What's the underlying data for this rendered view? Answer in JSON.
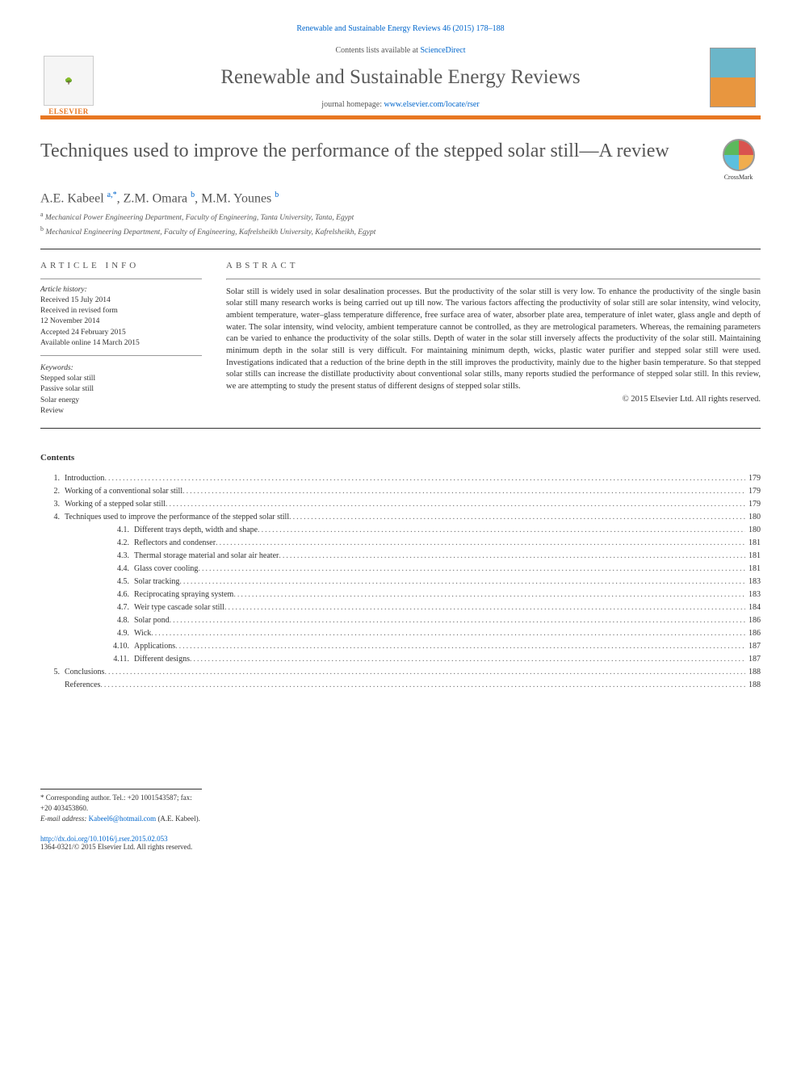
{
  "header": {
    "citation": "Renewable and Sustainable Energy Reviews 46 (2015) 178–188",
    "contents_prefix": "Contents lists available at ",
    "contents_link": "ScienceDirect",
    "journal_name": "Renewable and Sustainable Energy Reviews",
    "homepage_prefix": "journal homepage: ",
    "homepage_link": "www.elsevier.com/locate/rser",
    "publisher": "ELSEVIER"
  },
  "article": {
    "title": "Techniques used to improve the performance of the stepped solar still—A review",
    "crossmark": "CrossMark"
  },
  "authors": {
    "list": "A.E. Kabeel",
    "a1_sup": "a,",
    "a1_star": "*",
    "sep1": ", Z.M. Omara",
    "a2_sup": "b",
    "sep2": ", M.M. Younes",
    "a3_sup": "b"
  },
  "affiliations": [
    {
      "sup": "a",
      "text": " Mechanical Power Engineering Department, Faculty of Engineering, Tanta University, Tanta, Egypt"
    },
    {
      "sup": "b",
      "text": " Mechanical Engineering Department, Faculty of Engineering, Kafrelsheikh University, Kafrelsheikh, Egypt"
    }
  ],
  "article_info": {
    "label": "article info",
    "history_label": "Article history:",
    "history": [
      "Received 15 July 2014",
      "Received in revised form",
      "12 November 2014",
      "Accepted 24 February 2015",
      "Available online 14 March 2015"
    ],
    "keywords_label": "Keywords:",
    "keywords": [
      "Stepped solar still",
      "Passive solar still",
      "Solar energy",
      "Review"
    ]
  },
  "abstract": {
    "label": "abstract",
    "text": "Solar still is widely used in solar desalination processes. But the productivity of the solar still is very low. To enhance the productivity of the single basin solar still many research works is being carried out up till now. The various factors affecting the productivity of solar still are solar intensity, wind velocity, ambient temperature, water–glass temperature difference, free surface area of water, absorber plate area, temperature of inlet water, glass angle and depth of water. The solar intensity, wind velocity, ambient temperature cannot be controlled, as they are metrological parameters. Whereas, the remaining parameters can be varied to enhance the productivity of the solar stills. Depth of water in the solar still inversely affects the productivity of the solar still. Maintaining minimum depth in the solar still is very difficult. For maintaining minimum depth, wicks, plastic water purifier and stepped solar still were used. Investigations indicated that a reduction of the brine depth in the still improves the productivity, mainly due to the higher basin temperature. So that stepped solar stills can increase the distillate productivity about conventional solar stills, many reports studied the performance of stepped solar still. In this review, we are attempting to study the present status of different designs of stepped solar stills.",
    "copyright": "© 2015 Elsevier Ltd. All rights reserved."
  },
  "contents": {
    "heading": "Contents",
    "items": [
      {
        "num": "1.",
        "title": "Introduction",
        "page": "179"
      },
      {
        "num": "2.",
        "title": "Working of a conventional solar still ",
        "page": "179"
      },
      {
        "num": "3.",
        "title": "Working of a stepped solar still ",
        "page": "179"
      },
      {
        "num": "4.",
        "title": "Techniques used to improve the performance of the stepped solar still ",
        "page": "180"
      },
      {
        "sub": "4.1.",
        "title": "Different trays depth, width and shape ",
        "page": "180"
      },
      {
        "sub": "4.2.",
        "title": "Reflectors and condenser ",
        "page": "181"
      },
      {
        "sub": "4.3.",
        "title": "Thermal storage material and solar air heater",
        "page": "181"
      },
      {
        "sub": "4.4.",
        "title": "Glass cover cooling ",
        "page": "181"
      },
      {
        "sub": "4.5.",
        "title": "Solar tracking",
        "page": "183"
      },
      {
        "sub": "4.6.",
        "title": "Reciprocating spraying system ",
        "page": "183"
      },
      {
        "sub": "4.7.",
        "title": "Weir type cascade solar still",
        "page": "184"
      },
      {
        "sub": "4.8.",
        "title": "Solar pond ",
        "page": "186"
      },
      {
        "sub": "4.9.",
        "title": "Wick",
        "page": "186"
      },
      {
        "sub": "4.10.",
        "title": "Applications ",
        "page": "187"
      },
      {
        "sub": "4.11.",
        "title": "Different designs ",
        "page": "187"
      },
      {
        "num": "5.",
        "title": "Conclusions ",
        "page": "188"
      },
      {
        "num": "",
        "title": "References ",
        "page": "188"
      }
    ]
  },
  "footnotes": {
    "corr_prefix": "* Corresponding author. Tel.: +20 1001543587; fax: +20 403453860.",
    "email_label": "E-mail address: ",
    "email": "Kabeel6@hotmail.com",
    "email_suffix": " (A.E. Kabeel)."
  },
  "footer": {
    "doi": "http://dx.doi.org/10.1016/j.rser.2015.02.053",
    "issn": "1364-0321/© 2015 Elsevier Ltd. All rights reserved."
  },
  "colors": {
    "accent": "#e87722",
    "link": "#0066cc",
    "text_heading": "#555555"
  }
}
